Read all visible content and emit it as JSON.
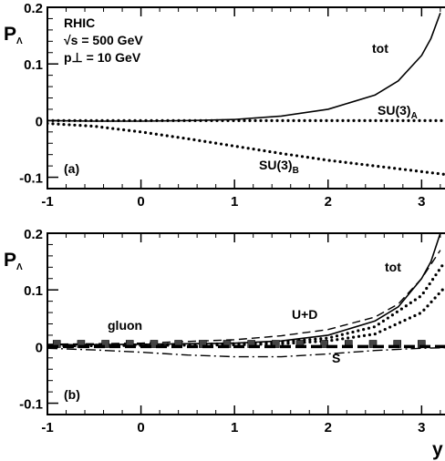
{
  "chart_data": [
    {
      "type": "line",
      "panel_label": "(a)",
      "ylabel_main": "P",
      "ylabel_sub": "Λ",
      "xlabel": "",
      "xlim": [
        -1,
        3.25
      ],
      "ylim": [
        -0.12,
        0.2
      ],
      "x_ticks": [
        "-1",
        "0",
        "1",
        "2",
        "3"
      ],
      "y_ticks": [
        "0.2",
        "0.1",
        "0",
        "-0.1"
      ],
      "info_lines": [
        "RHIC",
        "√s = 500 GeV",
        "p⊥ = 10 GeV"
      ],
      "series": [
        {
          "name": "tot",
          "label_main": "tot",
          "label_sub": "",
          "style": "solid",
          "x": [
            -1,
            -0.5,
            0,
            0.5,
            1,
            1.5,
            2,
            2.5,
            2.75,
            3,
            3.1,
            3.2
          ],
          "y": [
            0.0,
            -0.001,
            -0.001,
            0.0,
            0.002,
            0.008,
            0.02,
            0.045,
            0.07,
            0.115,
            0.145,
            0.19
          ]
        },
        {
          "name": "SU(3)A",
          "label_main": "SU(3)",
          "label_sub": "A",
          "style": "dotted",
          "x": [
            -1,
            0,
            1,
            2,
            3,
            3.25
          ],
          "y": [
            0.0,
            0.0,
            0.0,
            0.0,
            0.0,
            0.0
          ]
        },
        {
          "name": "SU(3)B",
          "label_main": "SU(3)",
          "label_sub": "B",
          "style": "dotted",
          "x": [
            -1,
            -0.5,
            0,
            0.5,
            1,
            1.5,
            2,
            2.5,
            3,
            3.25
          ],
          "y": [
            -0.005,
            -0.01,
            -0.02,
            -0.032,
            -0.045,
            -0.058,
            -0.07,
            -0.08,
            -0.09,
            -0.095
          ]
        }
      ]
    },
    {
      "type": "line",
      "panel_label": "(b)",
      "ylabel_main": "P",
      "ylabel_sub": "Λ",
      "xlabel": "y",
      "xlim": [
        -1,
        3.25
      ],
      "ylim": [
        -0.12,
        0.2
      ],
      "x_ticks": [
        "-1",
        "0",
        "1",
        "2",
        "3"
      ],
      "y_ticks": [
        "0.2",
        "0.1",
        "0",
        "-0.1"
      ],
      "series": [
        {
          "name": "tot",
          "label_main": "tot",
          "label_sub": "",
          "style": "solid",
          "x": [
            -1,
            0,
            1,
            1.5,
            2,
            2.5,
            2.75,
            3,
            3.1,
            3.2
          ],
          "y": [
            0.003,
            0.004,
            0.006,
            0.01,
            0.02,
            0.045,
            0.07,
            0.12,
            0.15,
            0.2
          ]
        },
        {
          "name": "U+D",
          "label_main": "U+D",
          "label_sub": "",
          "style": "dashed",
          "x": [
            -1,
            0,
            1,
            1.5,
            2,
            2.5,
            2.75,
            3,
            3.2
          ],
          "y": [
            0.004,
            0.006,
            0.012,
            0.019,
            0.03,
            0.052,
            0.075,
            0.12,
            0.17
          ]
        },
        {
          "name": "",
          "label_main": "",
          "label_sub": "",
          "style": "dotted",
          "x": [
            -1,
            0,
            1,
            1.5,
            2,
            2.5,
            3,
            3.25
          ],
          "y": [
            0.002,
            0.003,
            0.005,
            0.008,
            0.015,
            0.035,
            0.09,
            0.15
          ]
        },
        {
          "name": "",
          "label_main": "",
          "label_sub": "",
          "style": "dotted",
          "x": [
            -1,
            0,
            1,
            1.5,
            2,
            2.5,
            3,
            3.25
          ],
          "y": [
            0.001,
            0.002,
            0.003,
            0.005,
            0.01,
            0.022,
            0.06,
            0.105
          ]
        },
        {
          "name": "gluon",
          "label_main": "gluon",
          "label_sub": "",
          "style": "squares",
          "x": [
            -1,
            0,
            1,
            2,
            3,
            3.25
          ],
          "y": [
            0.003,
            0.003,
            0.003,
            0.003,
            0.003,
            0.003
          ]
        },
        {
          "name": "",
          "label_main": "",
          "label_sub": "",
          "style": "heavy-dashed",
          "x": [
            -1,
            0,
            1,
            2,
            3,
            3.25
          ],
          "y": [
            0.0,
            0.0,
            0.0,
            0.0,
            0.0,
            0.0
          ]
        },
        {
          "name": "S",
          "label_main": "S",
          "label_sub": "",
          "style": "dashdot",
          "x": [
            -1,
            -0.5,
            0,
            0.5,
            1,
            1.5,
            2,
            2.5,
            3,
            3.25
          ],
          "y": [
            -0.003,
            -0.006,
            -0.01,
            -0.015,
            -0.018,
            -0.018,
            -0.013,
            -0.007,
            -0.003,
            -0.002
          ]
        }
      ]
    }
  ]
}
